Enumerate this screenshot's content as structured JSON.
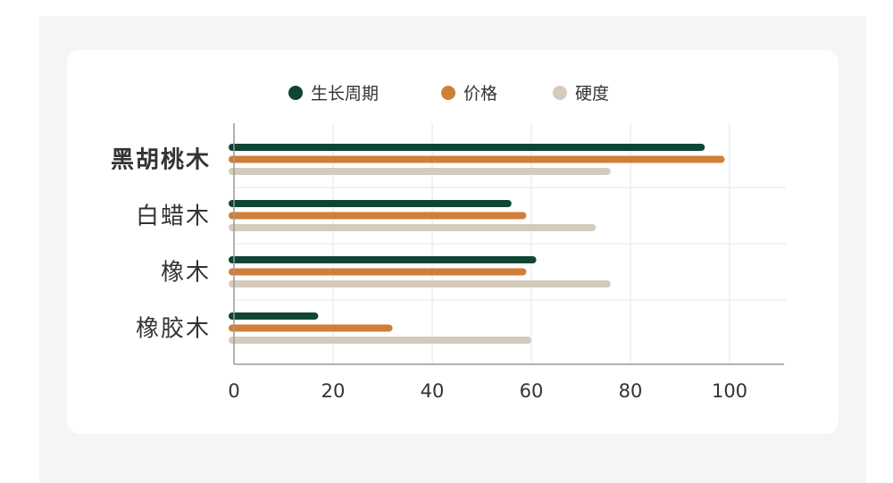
{
  "chart_data": {
    "type": "bar",
    "orientation": "horizontal",
    "categories": [
      "黑胡桃木",
      "白蜡木",
      "橡木",
      "橡胶木"
    ],
    "highlighted_category": "黑胡桃木",
    "series": [
      {
        "name": "生长周期",
        "color": "#0e4535",
        "values": [
          95,
          56,
          61,
          17
        ]
      },
      {
        "name": "价格",
        "color": "#cf7f38",
        "values": [
          99,
          59,
          59,
          32
        ]
      },
      {
        "name": "硬度",
        "color": "#d4cbbd",
        "values": [
          76,
          73,
          76,
          60
        ]
      }
    ],
    "xlim": [
      0,
      110
    ],
    "xticks": [
      0,
      20,
      40,
      60,
      80,
      100
    ],
    "grid": true,
    "legend_position": "top-center",
    "title": "",
    "xlabel": "",
    "ylabel": ""
  }
}
